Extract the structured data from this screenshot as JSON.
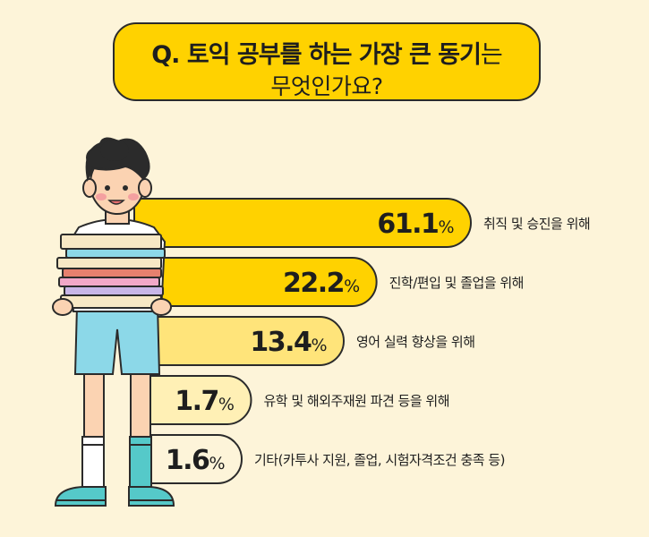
{
  "title": {
    "question_prefix": "Q. 토익 공부를 하는 가장 큰 동기",
    "question_suffix": "는",
    "line2": "무엇인가요?"
  },
  "chart_data": {
    "type": "bar",
    "orientation": "horizontal",
    "categories": [
      "취직 및 승진을 위해",
      "진학/편입 및 졸업을 위해",
      "영어 실력 향상을 위해",
      "유학 및 해외주재원 파견 등을 위해",
      "기타(카투사 지원, 졸업, 시험자격조건 충족 등)"
    ],
    "values": [
      61.1,
      22.2,
      13.4,
      1.7,
      1.6
    ],
    "unit": "%",
    "colors": [
      "#FFD200",
      "#FFD200",
      "#FFE47A",
      "#FFF0B5",
      "#FDF4D9"
    ],
    "outline_color": "#2B2B2B"
  }
}
